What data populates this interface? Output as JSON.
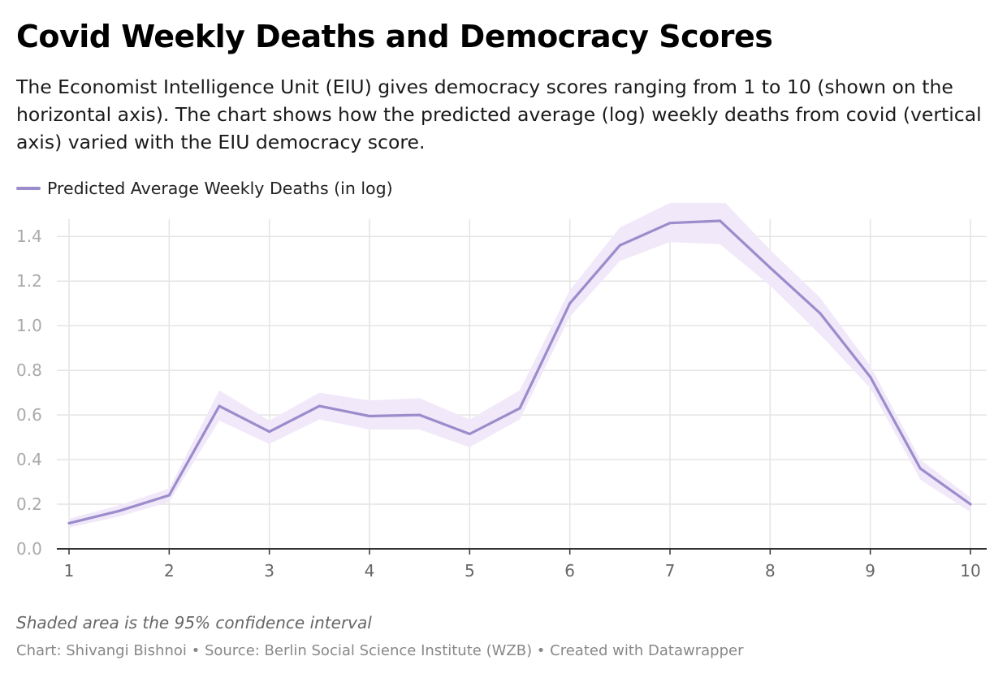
{
  "header": {
    "title": "Covid Weekly Deaths and Democracy Scores",
    "subtitle": "The Economist Intelligence Unit (EIU) gives democracy scores ranging from 1 to 10 (shown on the horizontal axis). The chart shows how the predicted average (log) weekly deaths from covid (vertical axis) varied with the EIU democracy score."
  },
  "legend": {
    "label": "Predicted Average Weekly Deaths (in log)"
  },
  "notes": {
    "ci_note": "Shaded area is the 95% confidence interval",
    "footer": "Chart: Shivangi Bishnoi • Source: Berlin Social Science Institute (WZB) • Created with Datawrapper"
  },
  "colors": {
    "line": "#9b8ccc",
    "band": "#f1e8f9",
    "grid": "#e4e4e4",
    "axis": "#333333",
    "y_tick_text": "#aaaaaa",
    "x_tick_text": "#666666"
  },
  "chart_data": {
    "type": "line",
    "title": "Covid Weekly Deaths and Democracy Scores",
    "xlim": [
      1,
      10
    ],
    "ylim": [
      0,
      1.55
    ],
    "x_ticks": [
      1,
      2,
      3,
      4,
      5,
      6,
      7,
      8,
      9,
      10
    ],
    "y_ticks": [
      0,
      0.2,
      0.4,
      0.6,
      0.8,
      1.0,
      1.2,
      1.4
    ],
    "y_tick_labels": [
      "0.0",
      "0.2",
      "0.4",
      "0.6",
      "0.8",
      "1.0",
      "1.2",
      "1.4"
    ],
    "grid": true,
    "legend_position": "top-left",
    "series": [
      {
        "name": "Predicted Average Weekly Deaths (in log)",
        "x": [
          1,
          1.5,
          2,
          2.5,
          3,
          3.5,
          4,
          4.5,
          5,
          5.5,
          6,
          6.5,
          7,
          7.5,
          8,
          8.5,
          9,
          9.5,
          10
        ],
        "y": [
          0.115,
          0.17,
          0.24,
          0.64,
          0.525,
          0.64,
          0.595,
          0.6,
          0.515,
          0.63,
          1.1,
          1.36,
          1.46,
          1.47,
          1.26,
          1.055,
          0.77,
          0.36,
          0.2
        ],
        "ci_lower": [
          0.095,
          0.145,
          0.21,
          0.575,
          0.47,
          0.58,
          0.535,
          0.535,
          0.455,
          0.58,
          1.04,
          1.29,
          1.375,
          1.365,
          1.18,
          0.96,
          0.72,
          0.31,
          0.165
        ],
        "ci_upper": [
          0.135,
          0.195,
          0.27,
          0.71,
          0.575,
          0.7,
          0.665,
          0.675,
          0.58,
          0.71,
          1.16,
          1.44,
          1.55,
          1.575,
          1.34,
          1.125,
          0.82,
          0.4,
          0.23
        ]
      }
    ]
  }
}
